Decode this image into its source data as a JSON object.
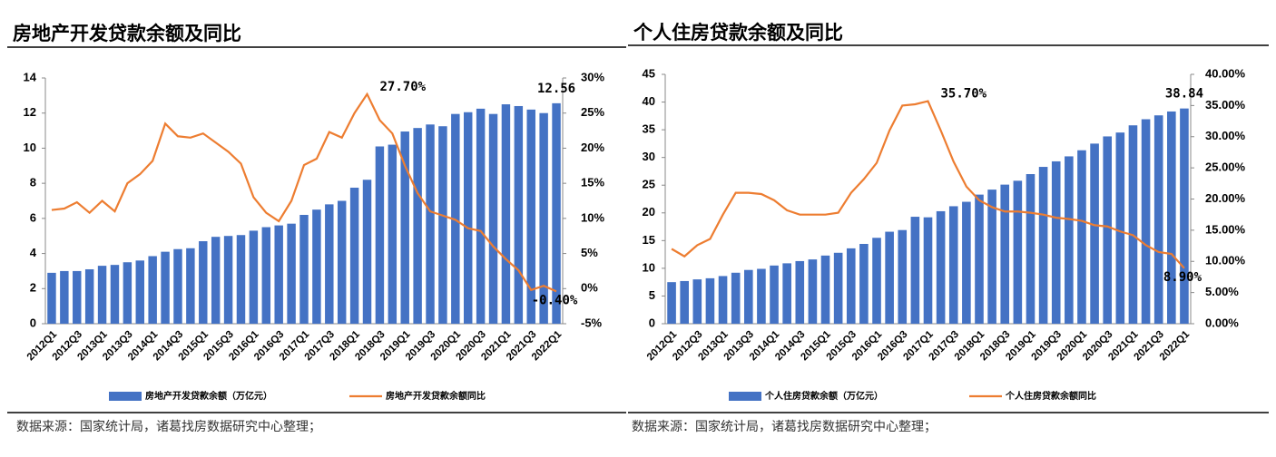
{
  "chart_data": [
    {
      "type": "bar-line",
      "title": "房地产开发贷款余额及同比",
      "source": "数据来源：国家统计局，诸葛找房数据研究中心整理；",
      "categories": [
        "2012Q1",
        null,
        "2012Q3",
        null,
        "2013Q1",
        null,
        "2013Q3",
        null,
        "2014Q1",
        null,
        "2014Q3",
        null,
        "2015Q1",
        null,
        "2015Q3",
        null,
        "2016Q1",
        null,
        "2016Q3",
        null,
        "2017Q1",
        null,
        "2017Q3",
        null,
        "2018Q1",
        null,
        "2018Q3",
        null,
        "2019Q1",
        null,
        "2019Q3",
        null,
        "2020Q1",
        null,
        "2020Q3",
        null,
        "2021Q1",
        null,
        "2021Q3",
        null,
        "2022Q1"
      ],
      "series": [
        {
          "name": "房地产开发贷款余额（万亿元）",
          "color": "#4472c4",
          "type": "bar",
          "values": [
            2.9,
            3.0,
            3.0,
            3.1,
            3.3,
            3.35,
            3.5,
            3.6,
            3.85,
            4.1,
            4.25,
            4.3,
            4.7,
            4.95,
            5.0,
            5.05,
            5.3,
            5.5,
            5.6,
            5.7,
            6.2,
            6.5,
            6.8,
            7.0,
            7.75,
            8.2,
            10.1,
            10.2,
            10.95,
            11.15,
            11.35,
            11.25,
            11.95,
            12.05,
            12.25,
            11.95,
            12.5,
            12.4,
            12.2,
            12.0,
            12.56
          ],
          "value_labels": [
            null,
            null,
            null,
            null,
            null,
            null,
            null,
            null,
            null,
            null,
            null,
            null,
            null,
            null,
            null,
            null,
            null,
            null,
            null,
            null,
            null,
            null,
            null,
            null,
            null,
            null,
            null,
            null,
            null,
            null,
            null,
            null,
            null,
            null,
            null,
            null,
            null,
            null,
            null,
            null,
            "12.56"
          ]
        },
        {
          "name": "房地产开发贷款余额同比",
          "color": "#ed7d31",
          "type": "line",
          "axis": "y2",
          "values": [
            11.2,
            11.4,
            12.3,
            10.8,
            12.5,
            11.0,
            15.0,
            16.3,
            18.2,
            23.5,
            21.7,
            21.5,
            22.1,
            20.8,
            19.5,
            17.8,
            13.0,
            10.8,
            9.6,
            12.5,
            17.6,
            18.5,
            22.3,
            21.5,
            25.0,
            27.7,
            24.0,
            22.1,
            17.5,
            13.6,
            11.0,
            10.4,
            9.8,
            8.6,
            8.2,
            6.0,
            4.2,
            2.6,
            -0.2,
            0.4,
            -0.4
          ],
          "value_labels": [
            null,
            null,
            null,
            null,
            null,
            null,
            null,
            null,
            null,
            null,
            null,
            null,
            null,
            null,
            null,
            null,
            null,
            null,
            null,
            null,
            null,
            null,
            null,
            null,
            null,
            "27.70%",
            null,
            null,
            null,
            null,
            null,
            null,
            null,
            null,
            null,
            null,
            null,
            null,
            null,
            null,
            "-0.40%"
          ]
        }
      ],
      "ylim": [
        0,
        14
      ],
      "yticks": [
        0,
        2,
        4,
        6,
        8,
        10,
        12,
        14
      ],
      "y2lim": [
        -5,
        30
      ],
      "y2ticks": [
        {
          "value": -5,
          "label": "-5%"
        },
        {
          "value": 0,
          "label": "0%"
        },
        {
          "value": 5,
          "label": "5%"
        },
        {
          "value": 10,
          "label": "10%"
        },
        {
          "value": 15,
          "label": "15%"
        },
        {
          "value": 20,
          "label": "20%"
        },
        {
          "value": 25,
          "label": "25%"
        },
        {
          "value": 30,
          "label": "30%"
        }
      ],
      "legend": "bottom"
    },
    {
      "type": "bar-line",
      "title": "个人住房贷款余额及同比",
      "source": "数据来源：国家统计局，诸葛找房数据研究中心整理；",
      "categories": [
        "2012Q1",
        null,
        "2012Q3",
        null,
        "2013Q1",
        null,
        "2013Q3",
        null,
        "2014Q1",
        null,
        "2014Q3",
        null,
        "2015Q1",
        null,
        "2015Q3",
        null,
        "2016Q1",
        null,
        "2016Q3",
        null,
        "2017Q1",
        null,
        "2017Q3",
        null,
        "2018Q1",
        null,
        "2018Q3",
        null,
        "2019Q1",
        null,
        "2019Q3",
        null,
        "2020Q1",
        null,
        "2020Q3",
        null,
        "2021Q1",
        null,
        "2021Q3",
        null,
        "2022Q1"
      ],
      "series": [
        {
          "name": "个人住房贷款余额（万亿元）",
          "color": "#4472c4",
          "type": "bar",
          "values": [
            7.5,
            7.7,
            8.0,
            8.2,
            8.6,
            9.2,
            9.7,
            9.9,
            10.5,
            10.9,
            11.3,
            11.6,
            12.3,
            12.8,
            13.6,
            14.4,
            15.5,
            16.6,
            16.9,
            19.3,
            19.2,
            20.3,
            21.2,
            22.0,
            23.3,
            24.2,
            25.1,
            25.8,
            27.0,
            28.3,
            29.3,
            30.2,
            31.3,
            32.5,
            33.8,
            34.5,
            35.8,
            36.9,
            37.6,
            38.3,
            38.84
          ],
          "value_labels": [
            null,
            null,
            null,
            null,
            null,
            null,
            null,
            null,
            null,
            null,
            null,
            null,
            null,
            null,
            null,
            null,
            null,
            null,
            null,
            null,
            null,
            null,
            null,
            null,
            null,
            null,
            null,
            null,
            null,
            null,
            null,
            null,
            null,
            null,
            null,
            null,
            null,
            null,
            null,
            null,
            "38.84"
          ]
        },
        {
          "name": "个人住房贷款余额同比",
          "color": "#ed7d31",
          "type": "line",
          "axis": "y2",
          "values": [
            12.0,
            10.8,
            12.6,
            13.6,
            17.5,
            21.0,
            21.0,
            20.8,
            19.8,
            18.2,
            17.5,
            17.5,
            17.5,
            17.8,
            21.0,
            23.2,
            25.8,
            31.0,
            35.0,
            35.2,
            35.7,
            31.0,
            26.0,
            22.0,
            19.8,
            18.7,
            18.0,
            18.0,
            17.8,
            17.5,
            17.0,
            16.8,
            16.5,
            15.8,
            15.6,
            14.8,
            14.2,
            12.6,
            11.5,
            11.2,
            8.9
          ],
          "value_labels": [
            null,
            null,
            null,
            null,
            null,
            null,
            null,
            null,
            null,
            null,
            null,
            null,
            null,
            null,
            null,
            null,
            null,
            null,
            null,
            null,
            "35.70%",
            null,
            null,
            null,
            null,
            null,
            null,
            null,
            null,
            null,
            null,
            null,
            null,
            null,
            null,
            null,
            null,
            null,
            null,
            null,
            "8.90%"
          ]
        }
      ],
      "ylim": [
        0,
        45
      ],
      "yticks": [
        0,
        5,
        10,
        15,
        20,
        25,
        30,
        35,
        40,
        45
      ],
      "y2lim": [
        0,
        40
      ],
      "y2ticks": [
        {
          "value": 0,
          "label": "0.00%"
        },
        {
          "value": 5,
          "label": "5.00%"
        },
        {
          "value": 10,
          "label": "10.00%"
        },
        {
          "value": 15,
          "label": "15.00%"
        },
        {
          "value": 20,
          "label": "20.00%"
        },
        {
          "value": 25,
          "label": "25.00%"
        },
        {
          "value": 30,
          "label": "30.00%"
        },
        {
          "value": 35,
          "label": "35.00%"
        },
        {
          "value": 40,
          "label": "40.00%"
        }
      ],
      "legend": "bottom"
    }
  ]
}
